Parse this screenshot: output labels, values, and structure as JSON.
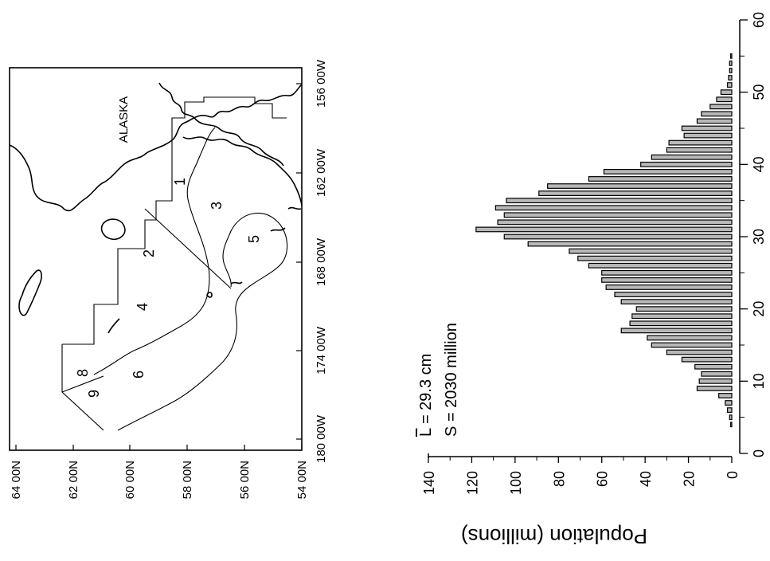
{
  "map": {
    "region_label": "ALASKA",
    "lon_ticks": [
      "156 00W",
      "162 00W",
      "168 00W",
      "174 00W",
      "180 00W"
    ],
    "lat_ticks": [
      "64 00N",
      "62 00N",
      "60 00N",
      "58 00N",
      "56 00N",
      "54 00N"
    ],
    "strata": [
      "1",
      "2",
      "3",
      "4",
      "5",
      "6",
      "8",
      "9"
    ]
  },
  "stats": {
    "mean_symbol": "L",
    "mean_text": " = 29.3  cm",
    "total_text": "S = 2030  million"
  },
  "chart_data": {
    "type": "bar",
    "ylabel": "Population (millions)",
    "xlim": [
      0,
      60
    ],
    "ylim": [
      0,
      140
    ],
    "x_ticks": [
      0,
      10,
      20,
      30,
      40,
      50,
      60
    ],
    "y_ticks": [
      0,
      20,
      40,
      60,
      80,
      100,
      120,
      140
    ],
    "x": [
      4,
      5,
      6,
      7,
      8,
      9,
      10,
      11,
      12,
      13,
      14,
      15,
      16,
      17,
      18,
      19,
      20,
      21,
      22,
      23,
      24,
      25,
      26,
      27,
      28,
      29,
      30,
      31,
      32,
      33,
      34,
      35,
      36,
      37,
      38,
      39,
      40,
      41,
      42,
      43,
      44,
      45,
      46,
      47,
      48,
      49,
      50,
      51,
      52,
      53,
      54,
      55
    ],
    "values": [
      0.5,
      1,
      2,
      3,
      6,
      16,
      15,
      14,
      17,
      23,
      30,
      37,
      39,
      51,
      47,
      46,
      44,
      51,
      54,
      58,
      60,
      60,
      66,
      71,
      75,
      94,
      105,
      118,
      108,
      105,
      109,
      104,
      89,
      85,
      66,
      59,
      42,
      37,
      30,
      29,
      22,
      23,
      16,
      14,
      10,
      7,
      5,
      2,
      1.5,
      1,
      1,
      0.5
    ]
  }
}
